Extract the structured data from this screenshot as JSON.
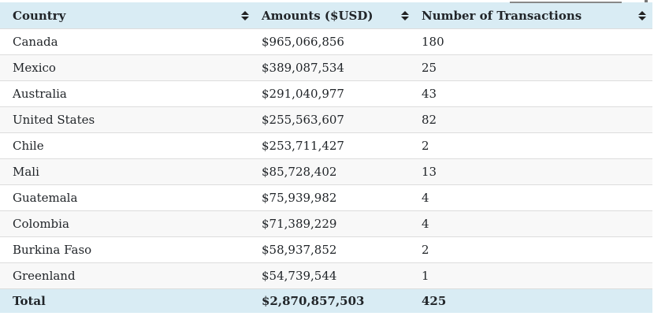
{
  "colors": {
    "header_bg": "#d9ecf4",
    "total_bg": "#d9ecf4",
    "stripe_bg": "#f8f8f8",
    "row_border": "#dddddd",
    "text": "#212529",
    "sort_icon": "#222222"
  },
  "icons": {
    "sort": "sort-arrows-up-down"
  },
  "table": {
    "columns": [
      {
        "label": "Country"
      },
      {
        "label": "Amounts ($USD)"
      },
      {
        "label": "Number of Transactions"
      }
    ],
    "rows": [
      {
        "country": "Canada",
        "amount": "$965,066,856",
        "transactions": "180"
      },
      {
        "country": "Mexico",
        "amount": "$389,087,534",
        "transactions": "25"
      },
      {
        "country": "Australia",
        "amount": "$291,040,977",
        "transactions": "43"
      },
      {
        "country": "United States",
        "amount": "$255,563,607",
        "transactions": "82"
      },
      {
        "country": "Chile",
        "amount": "$253,711,427",
        "transactions": "2"
      },
      {
        "country": "Mali",
        "amount": "$85,728,402",
        "transactions": "13"
      },
      {
        "country": "Guatemala",
        "amount": "$75,939,982",
        "transactions": "4"
      },
      {
        "country": "Colombia",
        "amount": "$71,389,229",
        "transactions": "4"
      },
      {
        "country": "Burkina Faso",
        "amount": "$58,937,852",
        "transactions": "2"
      },
      {
        "country": "Greenland",
        "amount": "$54,739,544",
        "transactions": "1"
      }
    ],
    "total": {
      "label": "Total",
      "amount": "$2,870,857,503",
      "transactions": "425"
    }
  }
}
